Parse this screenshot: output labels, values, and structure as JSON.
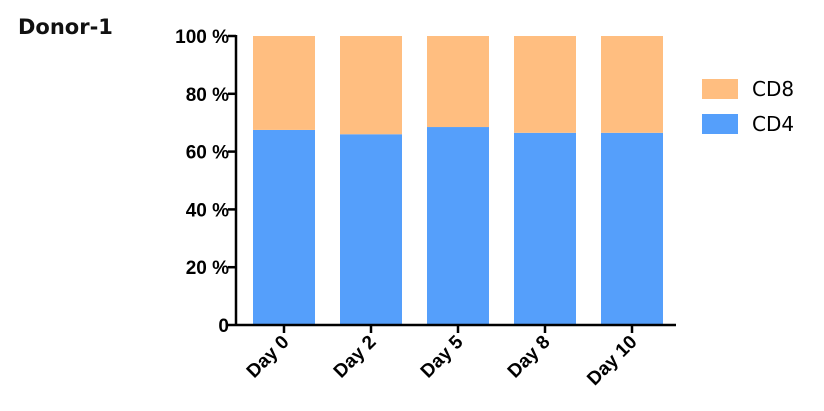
{
  "panel_label": "Donor-1",
  "chart_data": {
    "type": "bar",
    "stacked": true,
    "categories": [
      "Day 0",
      "Day 2",
      "Day 5",
      "Day 8",
      "Day 10"
    ],
    "series": [
      {
        "name": "CD4",
        "color": "#559ffb",
        "values": [
          67.5,
          66,
          68.5,
          66.5,
          66.5
        ]
      },
      {
        "name": "CD8",
        "color": "#ffbe80",
        "values": [
          32.5,
          34,
          31.5,
          33.5,
          33.5
        ]
      }
    ],
    "ylim": [
      0,
      100
    ],
    "yticks": [
      {
        "value": 0,
        "label": "0"
      },
      {
        "value": 20,
        "label": "20 %"
      },
      {
        "value": 40,
        "label": "40 %"
      },
      {
        "value": 60,
        "label": "60 %"
      },
      {
        "value": 80,
        "label": "80 %"
      },
      {
        "value": 100,
        "label": "100 %"
      }
    ],
    "legend_position": "right",
    "legend_order": [
      "CD8",
      "CD4"
    ],
    "grid": false
  }
}
